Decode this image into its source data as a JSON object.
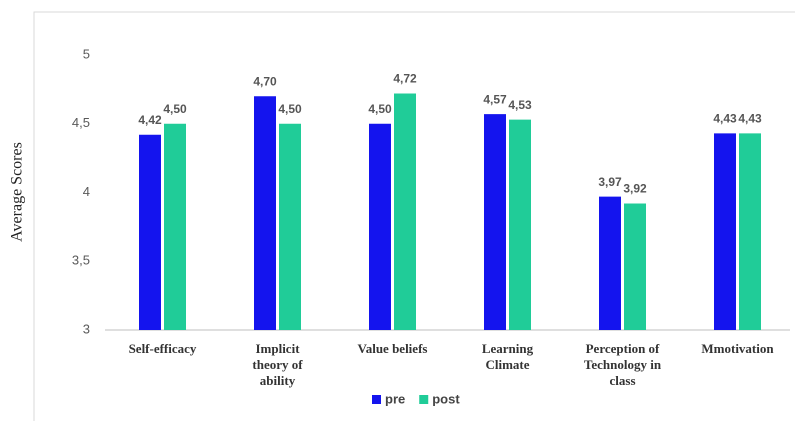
{
  "chart_data": {
    "type": "bar",
    "y_label": "Average Scores",
    "categories": [
      "Self-efficacy",
      "Implicit theory of ability",
      "Value beliefs",
      "Learning Climate",
      "Perception of Technology in class",
      "Mmotivation"
    ],
    "series": [
      {
        "name": "pre",
        "color": "#1414ee",
        "values": [
          4.42,
          4.7,
          4.5,
          4.57,
          3.97,
          4.43
        ],
        "value_labels": [
          "4,42",
          "4,70",
          "4,50",
          "4,57",
          "3,97",
          "4,43"
        ]
      },
      {
        "name": "post",
        "color": "#20cc98",
        "values": [
          4.5,
          4.5,
          4.72,
          4.53,
          3.92,
          4.43
        ],
        "value_labels": [
          "4,50",
          "4,50",
          "4,72",
          "4,53",
          "3,92",
          "4,43"
        ]
      }
    ],
    "ylim": [
      3,
      5
    ],
    "yticks": [
      3,
      {
        "value": 3.5,
        "label": "3,5"
      },
      4,
      {
        "value": 4.5,
        "label": "4,5"
      },
      5
    ],
    "grid": false,
    "legend": "bottom"
  }
}
